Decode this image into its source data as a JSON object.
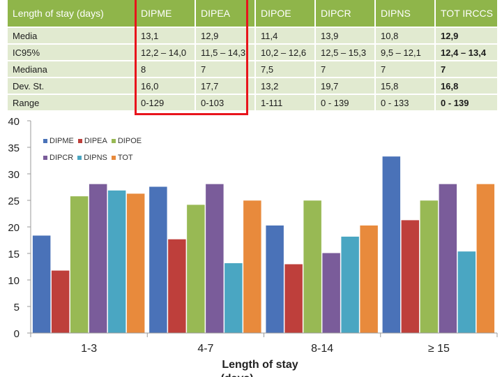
{
  "table": {
    "headers": [
      "Length of stay (days)",
      "DIPME",
      "DIPEA",
      "DIPOE",
      "DIPCR",
      "DIPNS",
      "TOT IRCCS"
    ],
    "rows": [
      [
        "Media",
        "13,1",
        "12,9",
        "11,4",
        "13,9",
        "10,8",
        "12,9"
      ],
      [
        "IC95%",
        "12,2 – 14,0",
        "11,5 – 14,3",
        "10,2 – 12,6",
        "12,5 – 15,3",
        "9,5 – 12,1",
        "12,4 – 13,4"
      ],
      [
        "Mediana",
        "8",
        "7",
        "7,5",
        "7",
        "7",
        "7"
      ],
      [
        "Dev. St.",
        "16,0",
        "17,7",
        "13,2",
        "19,7",
        "15,8",
        "16,8"
      ],
      [
        "Range",
        "0-129",
        "0-103",
        "1-111",
        "0 - 139",
        "0 - 133",
        "0 - 139"
      ]
    ]
  },
  "chart_data": {
    "type": "bar",
    "categories": [
      "1-3",
      "4-7",
      "8-14",
      "≥ 15"
    ],
    "series": [
      {
        "name": "DIPME",
        "color": "#4a72b8",
        "values": [
          18.4,
          27.6,
          20.3,
          33.3
        ]
      },
      {
        "name": "DIPEA",
        "color": "#be3f3b",
        "values": [
          11.8,
          17.7,
          13.0,
          21.3
        ]
      },
      {
        "name": "DIPOE",
        "color": "#98b954",
        "values": [
          25.8,
          24.2,
          25.0,
          25.0
        ]
      },
      {
        "name": "DIPCR",
        "color": "#7a5c9a",
        "values": [
          28.1,
          28.1,
          15.1,
          28.1
        ]
      },
      {
        "name": "DIPNS",
        "color": "#4aa6c2",
        "values": [
          26.9,
          13.2,
          18.2,
          15.4
        ]
      },
      {
        "name": "TOT",
        "color": "#e88a3c",
        "values": [
          26.3,
          25.0,
          20.3,
          28.1
        ]
      }
    ],
    "yticks": [
      "0",
      "5",
      "10",
      "15",
      "20",
      "25",
      "30",
      "35",
      "40"
    ],
    "ylim": [
      0,
      40
    ],
    "xlabel": "Length of stay (days)",
    "ylabel": "",
    "title": ""
  }
}
